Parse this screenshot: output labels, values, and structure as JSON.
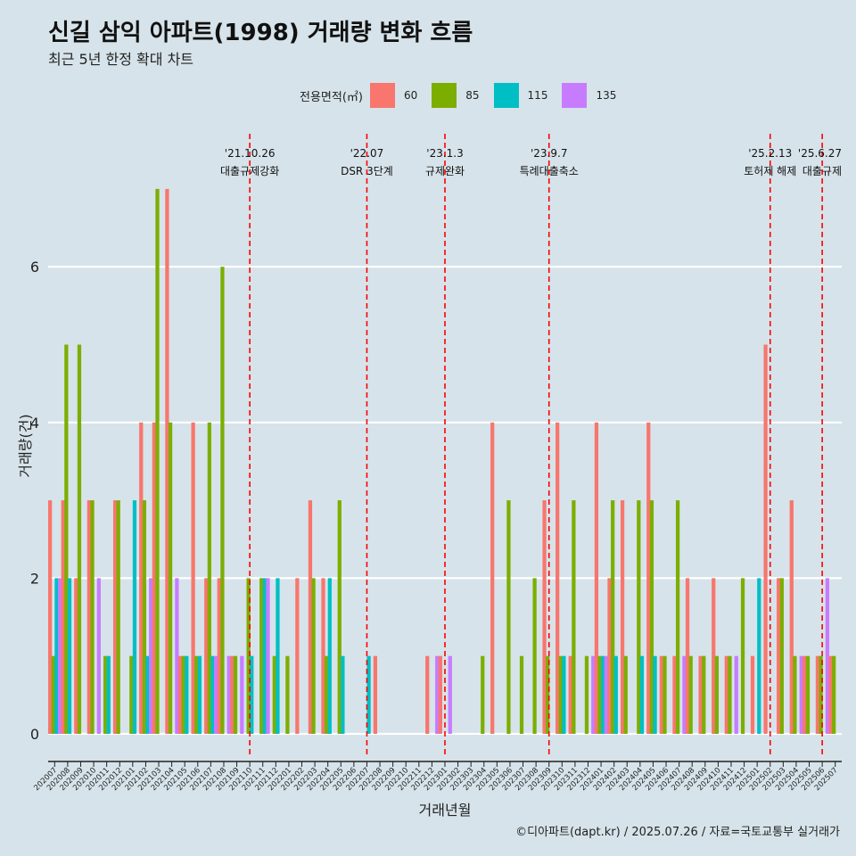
{
  "title": "신길 삼익 아파트(1998) 거래량 변화 흐름",
  "subtitle": "최근 5년 한정 확대 차트",
  "source": "©디아파트(dapt.kr) / 2025.07.26 / 자료=국토교통부 실거래가",
  "legend_title": "전용면적(㎡)",
  "colors": {
    "60": "#f8766d",
    "85": "#7cae00",
    "115": "#00bfc4",
    "135": "#c77cff",
    "event": "#ff0000"
  },
  "chart_data": {
    "type": "bar",
    "xlabel": "거래년월",
    "ylabel": "거래량(건)",
    "ylim": [
      0,
      7.6
    ],
    "yticks": [
      0,
      2,
      4,
      6
    ],
    "grid": true,
    "legend_position": "top",
    "months": [
      "202007",
      "202008",
      "202009",
      "202010",
      "202011",
      "202012",
      "202101",
      "202102",
      "202103",
      "202104",
      "202105",
      "202106",
      "202107",
      "202108",
      "202109",
      "202110",
      "202111",
      "202112",
      "202201",
      "202202",
      "202203",
      "202204",
      "202205",
      "202206",
      "202207",
      "202208",
      "202209",
      "202210",
      "202211",
      "202212",
      "202301",
      "202302",
      "202303",
      "202304",
      "202305",
      "202306",
      "202307",
      "202308",
      "202309",
      "202310",
      "202311",
      "202312",
      "202401",
      "202402",
      "202403",
      "202404",
      "202405",
      "202406",
      "202407",
      "202408",
      "202409",
      "202410",
      "202411",
      "202412",
      "202501",
      "202502",
      "202503",
      "202504",
      "202505",
      "202506",
      "202507"
    ],
    "series": [
      {
        "name": "60",
        "values": [
          3,
          3,
          2,
          3,
          0,
          3,
          0,
          4,
          4,
          7,
          1,
          4,
          2,
          2,
          1,
          0,
          0,
          0,
          0,
          2,
          3,
          2,
          0,
          0,
          0,
          1,
          0,
          0,
          0,
          1,
          1,
          0,
          0,
          0,
          4,
          0,
          0,
          0,
          3,
          4,
          1,
          0,
          4,
          2,
          3,
          0,
          4,
          1,
          1,
          2,
          1,
          2,
          1,
          0,
          1,
          5,
          2,
          3,
          1,
          1,
          1
        ]
      },
      {
        "name": "85",
        "values": [
          1,
          5,
          5,
          3,
          1,
          3,
          1,
          3,
          7,
          4,
          1,
          1,
          4,
          6,
          1,
          2,
          2,
          1,
          1,
          0,
          2,
          1,
          3,
          0,
          0,
          0,
          0,
          0,
          0,
          0,
          0,
          0,
          0,
          1,
          0,
          3,
          1,
          2,
          1,
          1,
          3,
          1,
          1,
          3,
          1,
          3,
          3,
          1,
          3,
          1,
          1,
          1,
          1,
          2,
          0,
          0,
          2,
          1,
          1,
          1,
          1
        ]
      },
      {
        "name": "115",
        "values": [
          2,
          2,
          0,
          0,
          1,
          0,
          3,
          1,
          0,
          0,
          1,
          1,
          1,
          0,
          0,
          1,
          2,
          2,
          0,
          0,
          0,
          2,
          1,
          0,
          1,
          0,
          0,
          0,
          0,
          0,
          0,
          0,
          0,
          0,
          0,
          0,
          0,
          0,
          0,
          1,
          0,
          0,
          1,
          1,
          0,
          1,
          1,
          0,
          0,
          0,
          0,
          0,
          0,
          0,
          2,
          0,
          0,
          0,
          0,
          0,
          0
        ]
      },
      {
        "name": "135",
        "values": [
          2,
          0,
          0,
          2,
          0,
          0,
          0,
          2,
          0,
          2,
          0,
          0,
          1,
          1,
          1,
          0,
          2,
          0,
          0,
          0,
          0,
          0,
          0,
          0,
          0,
          0,
          0,
          0,
          0,
          1,
          1,
          0,
          0,
          0,
          0,
          0,
          0,
          0,
          0,
          0,
          0,
          1,
          1,
          0,
          0,
          0,
          0,
          0,
          1,
          0,
          0,
          0,
          1,
          0,
          0,
          0,
          0,
          1,
          0,
          2,
          0
        ]
      }
    ],
    "events": [
      {
        "month": "202110",
        "date": "'21.10.26",
        "label": "대출규제강화"
      },
      {
        "month": "202207",
        "date": "'22.07",
        "label": "DSR 3단계"
      },
      {
        "month": "202301",
        "date": "'23.1.3",
        "label": "규제완화"
      },
      {
        "month": "202309",
        "date": "'23.9.7",
        "label": "특례대출축소"
      },
      {
        "month": "202502",
        "date": "'25.2.13",
        "label": "토허제 해제"
      },
      {
        "month": "202506",
        "date": "'25.6.27",
        "label": "대출규제"
      }
    ]
  }
}
